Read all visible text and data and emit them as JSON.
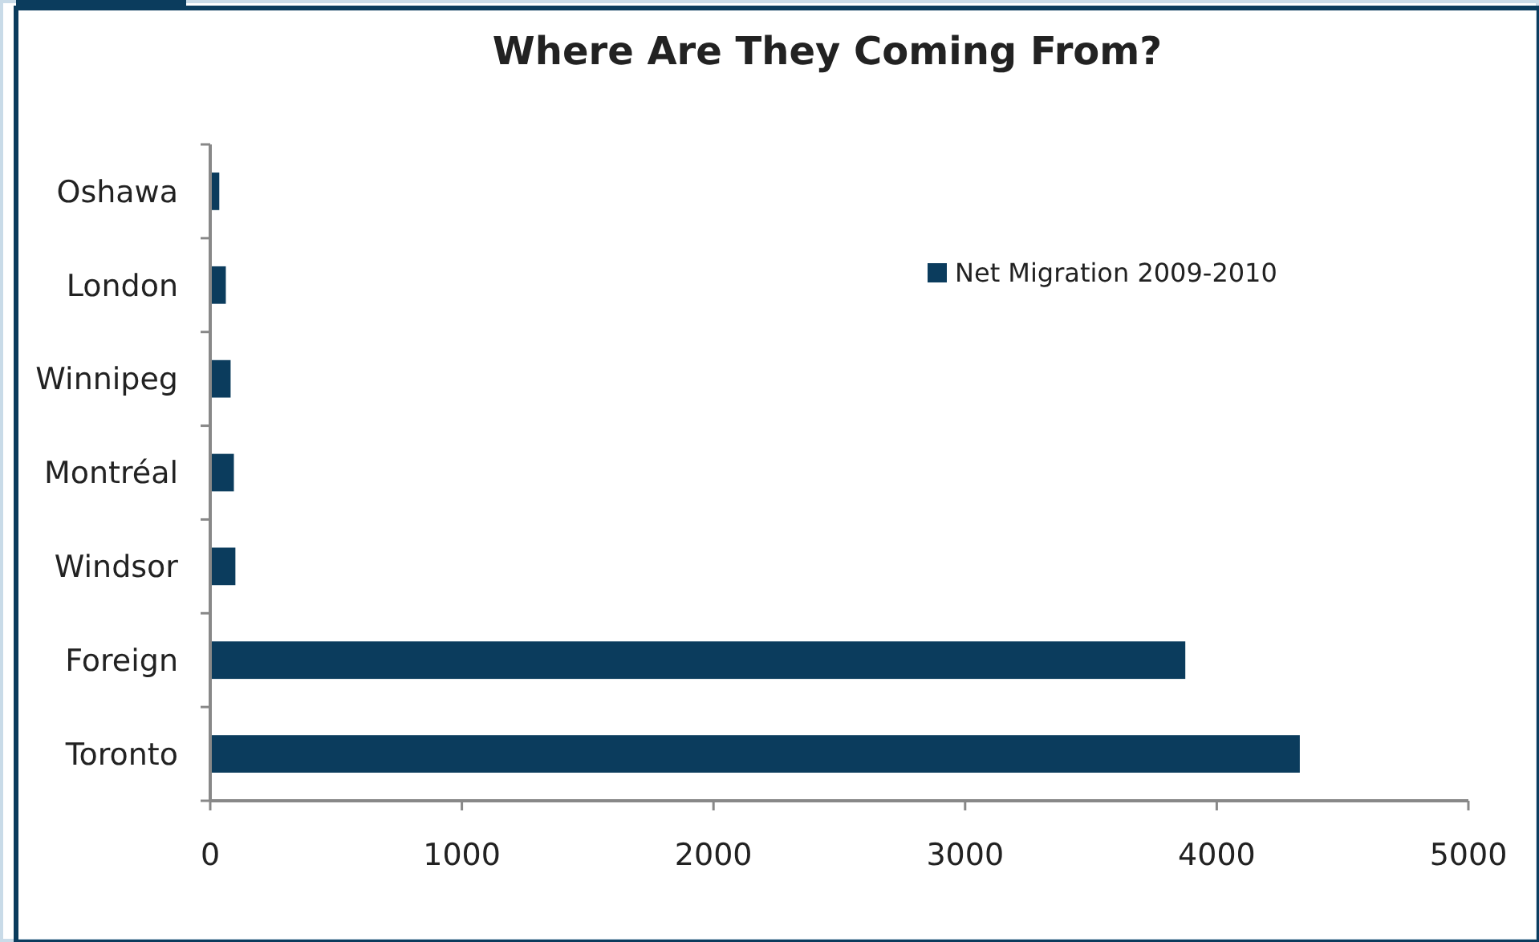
{
  "chart_data": {
    "type": "bar",
    "orientation": "horizontal",
    "title": "Where Are They Coming From?",
    "categories": [
      "Oshawa",
      "London",
      "Winnipeg",
      "Montréal",
      "Windsor",
      "Foreign",
      "Toronto"
    ],
    "series": [
      {
        "name": "Net Migration 2009-2010",
        "color": "#0b3c5d",
        "values": [
          36,
          62,
          81,
          94,
          100,
          3875,
          4330
        ]
      }
    ],
    "xlim": [
      0,
      5000
    ],
    "xticks": [
      0,
      1000,
      2000,
      3000,
      4000,
      5000
    ],
    "legend": "top right"
  }
}
